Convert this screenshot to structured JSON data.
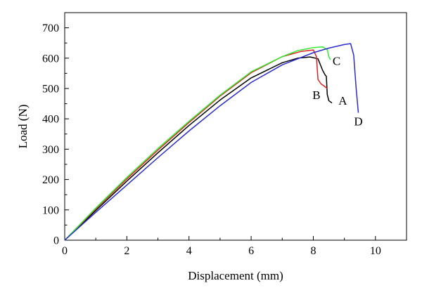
{
  "chart_data": {
    "type": "line",
    "title": "",
    "xlabel": "Displacement (mm)",
    "ylabel": "Load (N)",
    "xlim": [
      0,
      11
    ],
    "ylim": [
      0,
      750
    ],
    "x_ticks": [
      0,
      2,
      4,
      6,
      8,
      10
    ],
    "y_ticks": [
      0,
      100,
      200,
      300,
      400,
      500,
      600,
      700
    ],
    "grid": false,
    "legend": "none",
    "series": [
      {
        "name": "A",
        "color": "#000000",
        "x": [
          0,
          1,
          2,
          3,
          4,
          5,
          6,
          7,
          7.5,
          7.9,
          8.15,
          8.3,
          8.38,
          8.42,
          8.45,
          8.5,
          8.6
        ],
        "y": [
          0,
          98,
          195,
          288,
          378,
          462,
          535,
          585,
          600,
          604,
          598,
          560,
          545,
          540,
          480,
          460,
          452
        ]
      },
      {
        "name": "B",
        "color": "#e02020",
        "x": [
          0,
          1,
          2,
          3,
          4,
          5,
          6,
          7,
          7.6,
          8.0,
          8.1,
          8.15,
          8.25,
          8.35,
          8.45
        ],
        "y": [
          0,
          103,
          202,
          297,
          388,
          475,
          552,
          605,
          622,
          627,
          605,
          530,
          515,
          508,
          500
        ]
      },
      {
        "name": "C",
        "color": "#33ee33",
        "x": [
          0,
          1,
          2,
          3,
          4,
          5,
          6,
          7,
          7.5,
          8.0,
          8.3,
          8.45,
          8.5,
          8.55
        ],
        "y": [
          0,
          106,
          207,
          302,
          392,
          478,
          555,
          605,
          625,
          635,
          637,
          628,
          605,
          595
        ]
      },
      {
        "name": "D",
        "color": "#2a2ad0",
        "x": [
          0,
          1,
          2,
          3,
          4,
          5,
          6,
          7,
          7.5,
          8.0,
          8.5,
          9.0,
          9.2,
          9.3,
          9.38,
          9.45
        ],
        "y": [
          0,
          92,
          182,
          272,
          360,
          443,
          520,
          578,
          598,
          618,
          633,
          645,
          648,
          610,
          500,
          420
        ]
      }
    ],
    "annotations": [
      {
        "text": "A",
        "x": 8.95,
        "y": 447
      },
      {
        "text": "B",
        "x": 8.1,
        "y": 465
      },
      {
        "text": "C",
        "x": 8.75,
        "y": 578
      },
      {
        "text": "D",
        "x": 9.45,
        "y": 378
      }
    ]
  }
}
